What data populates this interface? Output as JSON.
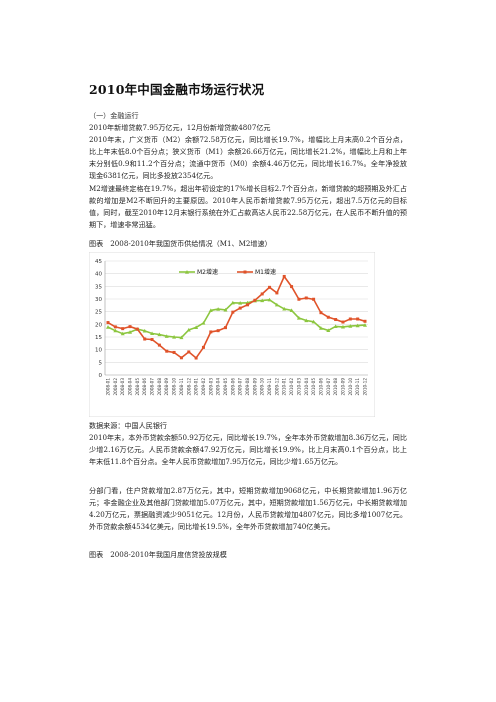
{
  "title": "2010年中国金融市场运行状况",
  "section_heading": "（一）金融运行",
  "paragraphs": {
    "p1": "2010年新增贷款7.95万亿元，12月份新增贷款4807亿元",
    "p2": "2010年末，广义货币（M2）余额72.58万亿元，同比增长19.7%，增幅比上月末高0.2个百分点，比上年末低8.0个百分点；狭义货币（M1）余额26.66万亿元，同比增长21.2%，增幅比上月和上年末分别低0.9和11.2个百分点；流通中货币（M0）余额4.46万亿元，同比增长16.7%。全年净投放现金6381亿元，同比多投放2354亿元。",
    "p3": "M2增速最终定格在19.7%，超出年初设定的17%增长目标2.7个百分点，新增贷款的超预期及外汇占款的增加是M2不断回升的主要原因。2010年人民币新增贷款7.95万亿元，超出7.5万亿元的目标值，同时，截至2010年12月末银行系统在外汇占款高达人民币22.58万亿元，在人民币不断升值的预期下，增速非常迅猛。",
    "fig1_caption": "图表　2008-2010年我国货币供给情况（M1、M2增速）",
    "source": "数据来源：中国人民银行",
    "p4": "2010年末，本外币贷款余额50.92万亿元，同比增长19.7%，全年本外币贷款增加8.36万亿元，同比少增2.16万亿元。人民币贷款余额47.92万亿元，同比增长19.9%，比上月末高0.1个百分点，比上年末低11.8个百分点。全年人民币贷款增加7.95万亿元，同比少增1.65万亿元。",
    "p5": "分部门看，住户贷款增加2.87万亿元，其中，短期贷款增加9068亿元，中长期贷款增加1.96万亿元；非金融企业及其他部门贷款增加5.07万亿元，其中，短期贷款增加1.56万亿元，中长期贷款增加4.20万亿元，票据融资减少9051亿元。12月份，人民币贷款增加4807亿元，同比多增1007亿元。外币贷款余额4534亿美元，同比增长19.5%，全年外币贷款增加740亿美元。",
    "fig2_caption": "图表　2008-2010年我国月度信贷投放规模"
  },
  "chart_data": {
    "type": "line",
    "title": "",
    "xlabel": "",
    "ylabel": "",
    "ylim": [
      0,
      45
    ],
    "yticks": [
      "0",
      "5",
      "10",
      "15",
      "20",
      "25",
      "30",
      "35",
      "40",
      "45"
    ],
    "grid": true,
    "legend_position": "top-center",
    "x": [
      "2008-01",
      "2008-02",
      "2008-03",
      "2008-04",
      "2008-05",
      "2008-06",
      "2008-07",
      "2008-08",
      "2008-09",
      "2008-10",
      "2008-11",
      "2008-12",
      "2009-01",
      "2009-02",
      "2009-03",
      "2009-04",
      "2009-05",
      "2009-06",
      "2009-07",
      "2009-08",
      "2009-09",
      "2009-10",
      "2009-11",
      "2009-12",
      "2010-01",
      "2010-02",
      "2010-03",
      "2010-04",
      "2010-05",
      "2010-06",
      "2010-07",
      "2010-08",
      "2010-09",
      "2010-10",
      "2010-11",
      "2010-12"
    ],
    "series": [
      {
        "name": "M2增速",
        "color": "#8cc63f",
        "marker": "triangle",
        "values": [
          18.9,
          17.5,
          16.3,
          16.9,
          18.1,
          17.4,
          16.4,
          16.0,
          15.3,
          15.0,
          14.8,
          17.8,
          18.8,
          20.5,
          25.5,
          26.0,
          25.7,
          28.5,
          28.4,
          28.5,
          29.3,
          29.4,
          29.7,
          27.7,
          26.1,
          25.5,
          22.5,
          21.5,
          21.0,
          18.5,
          17.6,
          19.2,
          19.0,
          19.3,
          19.5,
          19.7
        ]
      },
      {
        "name": "M1增速",
        "color": "#e0532a",
        "marker": "square",
        "values": [
          20.7,
          19.0,
          18.3,
          19.1,
          18.1,
          14.2,
          14.0,
          11.8,
          9.4,
          8.9,
          6.8,
          9.1,
          6.7,
          10.9,
          17.0,
          17.5,
          18.7,
          24.8,
          26.4,
          27.7,
          29.5,
          32.0,
          34.6,
          32.4,
          38.9,
          34.9,
          29.9,
          30.4,
          29.9,
          24.6,
          22.8,
          21.9,
          20.9,
          22.1,
          22.1,
          21.2
        ]
      }
    ]
  }
}
